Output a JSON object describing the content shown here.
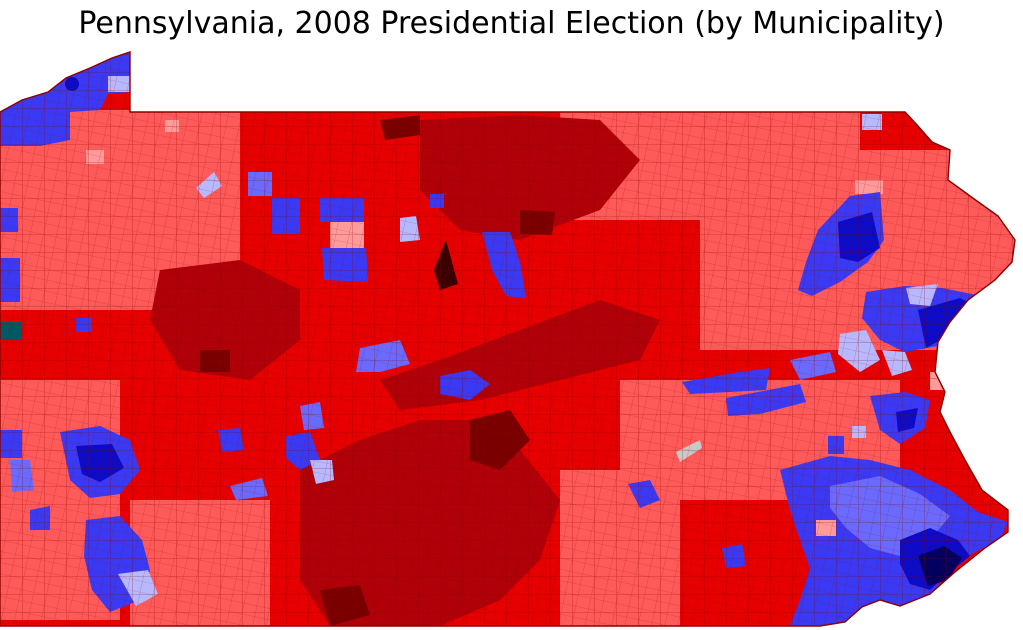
{
  "title": "Pennsylvania, 2008 Presidential Election (by Municipality)",
  "colors": {
    "background": "#ffffff",
    "border": "#8b0000",
    "rep_light": "#ff5a5a",
    "rep_mid": "#e60000",
    "rep_dark": "#b00008",
    "rep_darkest": "#7a0000",
    "rep_pale": "#ff9b9b",
    "dem_pale": "#b8b8ff",
    "dem_light": "#6a6aff",
    "dem_mid": "#3a3af5",
    "dem_dark": "#0b0bc8",
    "dem_darkest": "#000060",
    "tie": "#c8c8c8",
    "water": "#005a66"
  }
}
